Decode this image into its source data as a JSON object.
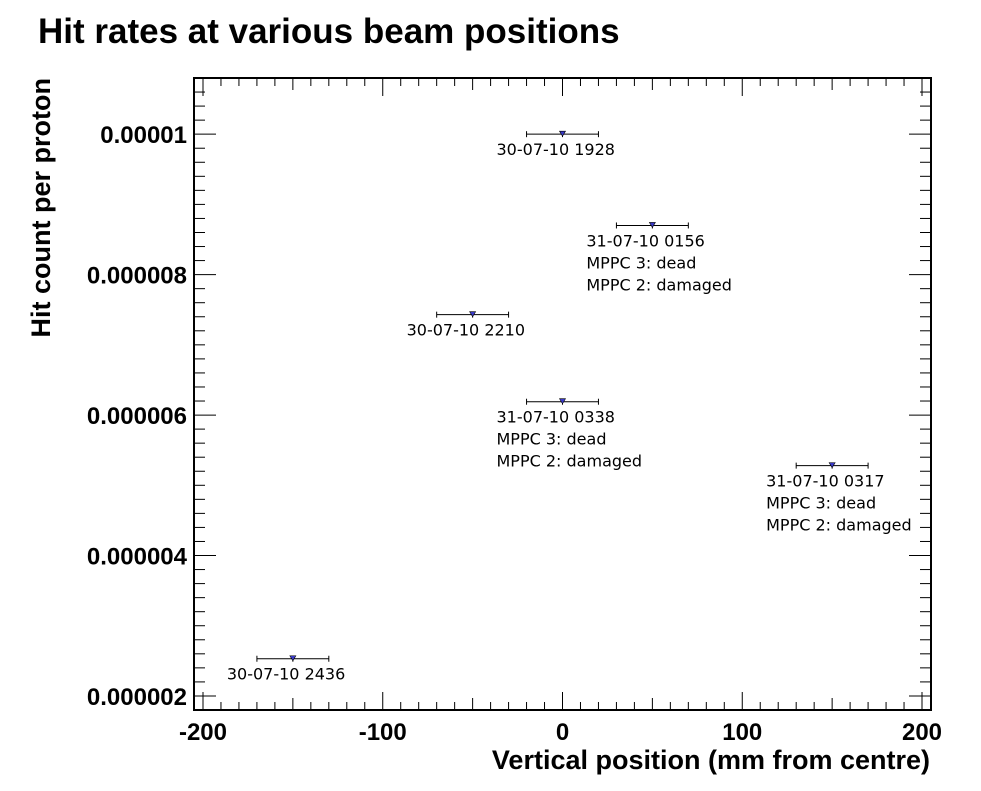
{
  "chart_data": {
    "type": "scatter",
    "title": "Hit rates at various beam positions",
    "xlabel": "Vertical position (mm from centre)",
    "ylabel": "Hit count per proton",
    "xlim": [
      -205,
      205
    ],
    "ylim": [
      1.8e-06,
      1.08e-05
    ],
    "x_ticks": [
      -200,
      -100,
      0,
      100,
      200
    ],
    "x_tick_labels": [
      "-200",
      "-100",
      "0",
      "100",
      "200"
    ],
    "y_ticks": [
      2e-06,
      4e-06,
      6e-06,
      8e-06,
      1e-05
    ],
    "y_tick_labels": [
      "0.000002",
      "0.000004",
      "0.000006",
      "0.000008",
      "0.00001"
    ],
    "grid": false,
    "marker_color": "#3a3ac8",
    "points": [
      {
        "x": -150,
        "y": 2.53e-06,
        "xerr": 20,
        "annotation": [
          "30-07-10 2436"
        ]
      },
      {
        "x": -50,
        "y": 7.43e-06,
        "xerr": 20,
        "annotation": [
          "30-07-10 2210"
        ]
      },
      {
        "x": 0,
        "y": 1e-05,
        "xerr": 20,
        "annotation": [
          "30-07-10 1928"
        ]
      },
      {
        "x": 0,
        "y": 6.19e-06,
        "xerr": 20,
        "annotation": [
          "31-07-10 0338",
          "MPPC 3: dead",
          "MPPC 2: damaged"
        ]
      },
      {
        "x": 50,
        "y": 8.7e-06,
        "xerr": 20,
        "annotation": [
          "31-07-10 0156",
          "MPPC 3: dead",
          "MPPC 2: damaged"
        ]
      },
      {
        "x": 150,
        "y": 5.28e-06,
        "xerr": 20,
        "annotation": [
          "31-07-10 0317",
          "MPPC 3: dead",
          "MPPC 2: damaged"
        ]
      }
    ]
  }
}
